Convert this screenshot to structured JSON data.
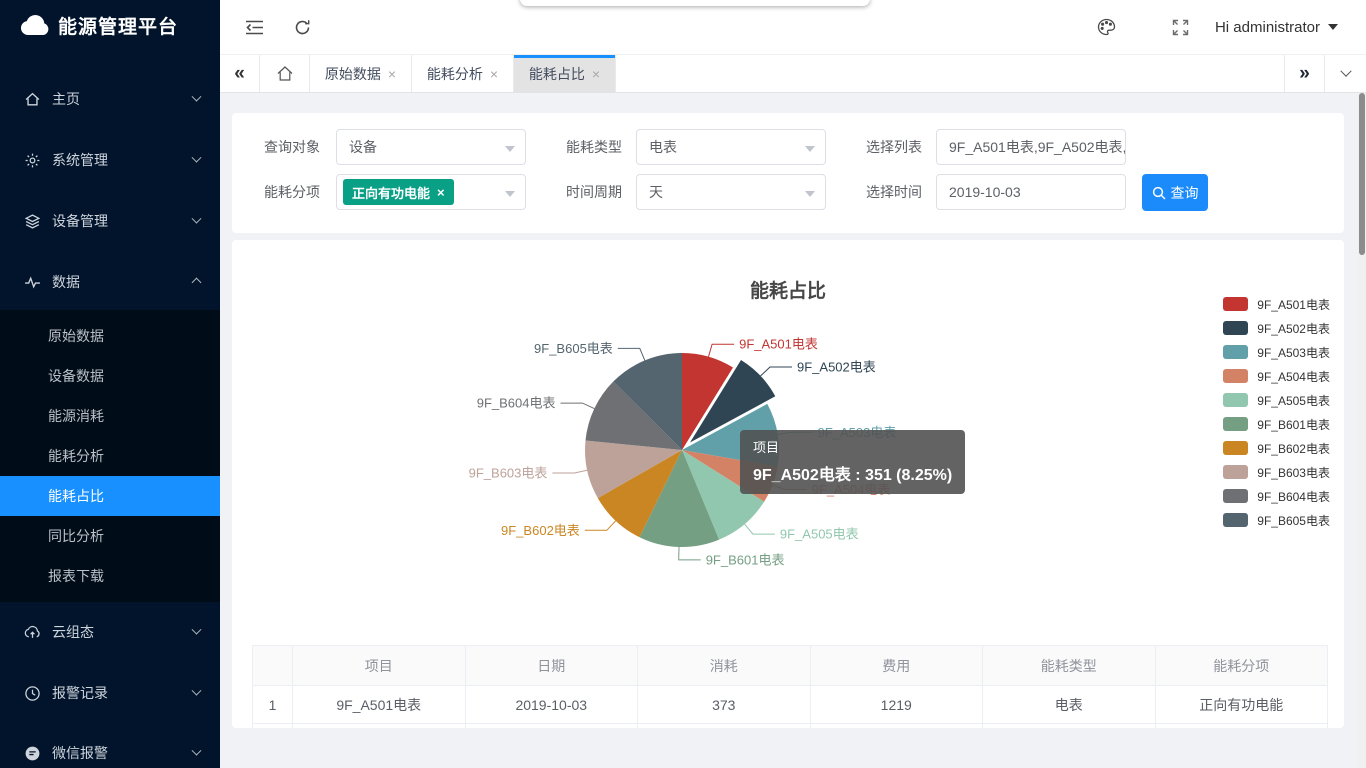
{
  "app": {
    "title": "能源管理平台"
  },
  "header": {
    "user": "Hi administrator"
  },
  "sidebar": {
    "items": [
      {
        "label": "主页",
        "icon": "home-icon"
      },
      {
        "label": "系统管理",
        "icon": "gear-icon"
      },
      {
        "label": "设备管理",
        "icon": "layers-icon"
      },
      {
        "label": "数据",
        "icon": "pulse-icon",
        "expanded": true,
        "children": [
          "原始数据",
          "设备数据",
          "能源消耗",
          "能耗分析",
          "能耗占比",
          "同比分析",
          "报表下载"
        ],
        "active_child": "能耗占比"
      },
      {
        "label": "云组态",
        "icon": "cloud-upload-icon"
      },
      {
        "label": "报警记录",
        "icon": "clock-icon"
      },
      {
        "label": "微信报警",
        "icon": "wechat-icon"
      }
    ]
  },
  "tabs": {
    "items": [
      {
        "label": "原始数据",
        "active": false
      },
      {
        "label": "能耗分析",
        "active": false
      },
      {
        "label": "能耗占比",
        "active": true
      }
    ]
  },
  "filters": {
    "fields": [
      {
        "label": "查询对象",
        "type": "select",
        "value": "设备"
      },
      {
        "label": "能耗类型",
        "type": "select",
        "value": "电表"
      },
      {
        "label": "选择列表",
        "type": "input",
        "value": "9F_A501电表,9F_A502电表,"
      },
      {
        "label": "能耗分项",
        "type": "multiselect",
        "tag": "正向有功电能"
      },
      {
        "label": "时间周期",
        "type": "select",
        "value": "天"
      },
      {
        "label": "选择时间",
        "type": "input",
        "value": "2019-10-03"
      }
    ],
    "search_label": "查询"
  },
  "chart_data": {
    "type": "pie",
    "title": "能耗占比",
    "series_name": "项目",
    "legend_position": "right",
    "items": [
      {
        "name": "9F_A501电表",
        "value": 373,
        "color": "#c23531"
      },
      {
        "name": "9F_A502电表",
        "value": 351,
        "color": "#2f4554",
        "selected": true
      },
      {
        "name": "9F_A503电表",
        "value": 450,
        "color": "#61a0a8"
      },
      {
        "name": "9F_A504电表",
        "value": 262,
        "color": "#d48265"
      },
      {
        "name": "9F_A505电表",
        "value": 415,
        "color": "#91c7ae"
      },
      {
        "name": "9F_B601电表",
        "value": 570,
        "color": "#749f83"
      },
      {
        "name": "9F_B602电表",
        "value": 403,
        "color": "#ca8622"
      },
      {
        "name": "9F_B603电表",
        "value": 415,
        "color": "#bda29a"
      },
      {
        "name": "9F_B604电表",
        "value": 462,
        "color": "#6e7074"
      },
      {
        "name": "9F_B605电表",
        "value": 530,
        "color": "#546570"
      }
    ],
    "tooltip": {
      "header": "项目",
      "text": "9F_A502电表 : 351 (8.25%)"
    }
  },
  "table": {
    "headers": [
      "",
      "项目",
      "日期",
      "消耗",
      "费用",
      "能耗类型",
      "能耗分项"
    ],
    "rows": [
      [
        "1",
        "9F_A501电表",
        "2019-10-03",
        "373",
        "1219",
        "电表",
        "正向有功电能"
      ]
    ]
  }
}
